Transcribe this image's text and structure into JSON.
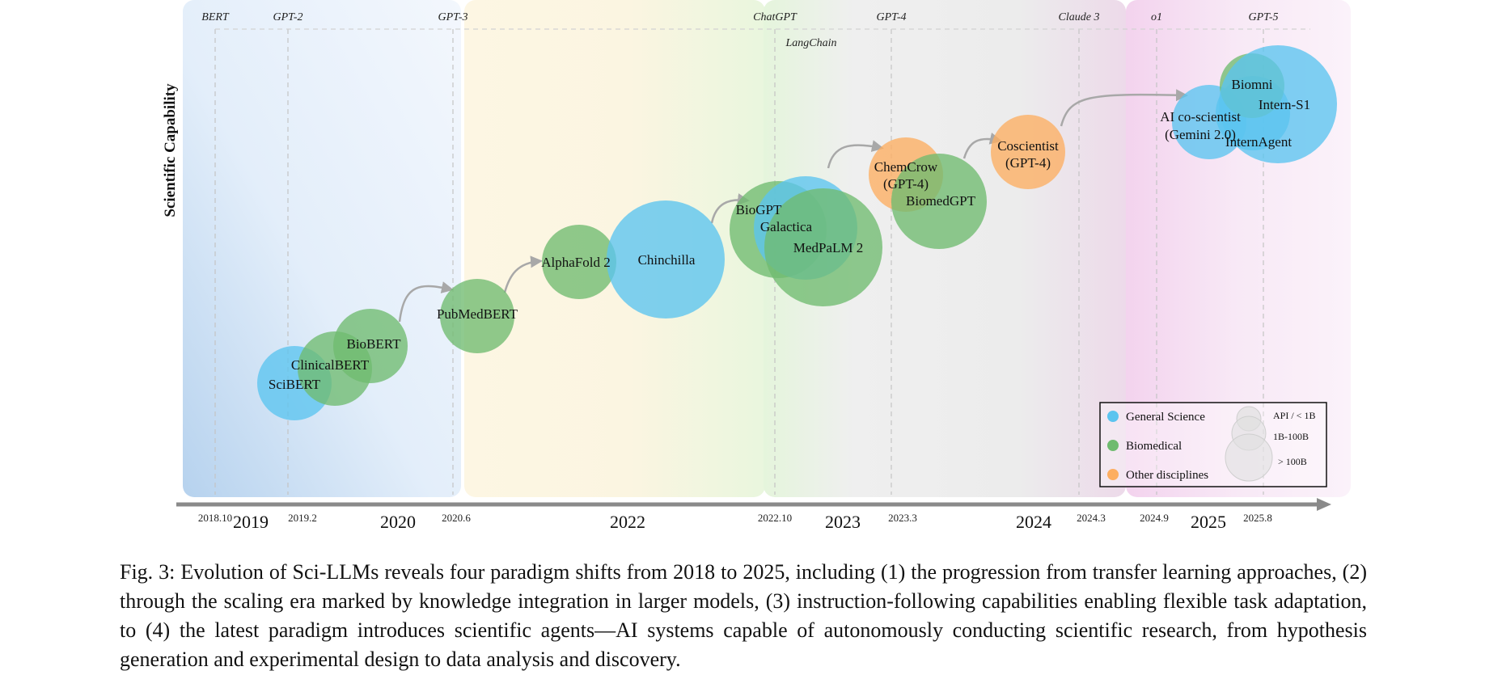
{
  "caption": "Fig. 3: Evolution of Sci-LLMs reveals four paradigm shifts from 2018 to 2025, including (1) the progression from transfer learning approaches, (2) through the scaling era marked by knowledge integration in larger models, (3) instruction-following capabilities enabling flexible task adaptation, to (4) the latest paradigm introduces scientific agents—AI systems capable of autonomously conducting scientific research, from hypothesis generation and experimental design to data analysis and discovery.",
  "chart_data": {
    "type": "scatter",
    "ylabel": "Scientific Capability",
    "colors": {
      "general": "#5bc4ef",
      "biomedical": "#6fbb6f",
      "other": "#fdae61",
      "axis": "#8a8a8a"
    },
    "milestones": [
      "BERT",
      "GPT-2",
      "GPT-3",
      "ChatGPT",
      "LangChain",
      "GPT-4",
      "Claude 3",
      "o1",
      "GPT-5"
    ],
    "date_ticks": [
      "2018.10",
      "2019.2",
      "2020.6",
      "2022.10",
      "2023.3",
      "2024.3",
      "2024.9",
      "2025.8"
    ],
    "years": [
      "2019",
      "2020",
      "2022",
      "2023",
      "2024",
      "2025"
    ],
    "models": [
      {
        "name": "SciBERT",
        "category": "general",
        "size": "1B-100B"
      },
      {
        "name": "ClinicalBERT",
        "category": "biomedical",
        "size": "1B-100B"
      },
      {
        "name": "BioBERT",
        "category": "biomedical",
        "size": "1B-100B"
      },
      {
        "name": "PubMedBERT",
        "category": "biomedical",
        "size": "1B-100B"
      },
      {
        "name": "AlphaFold 2",
        "category": "biomedical",
        "size": "1B-100B"
      },
      {
        "name": "Chinchilla",
        "category": "general",
        "size": "> 100B"
      },
      {
        "name": "BioGPT",
        "category": "biomedical",
        "size": "1B-100B"
      },
      {
        "name": "Galactica",
        "category": "general",
        "size": "> 100B"
      },
      {
        "name": "MedPaLM 2",
        "category": "biomedical",
        "size": "> 100B"
      },
      {
        "name": "ChemCrow (GPT-4)",
        "category": "other",
        "size": "1B-100B"
      },
      {
        "name": "BiomedGPT",
        "category": "biomedical",
        "size": "> 100B"
      },
      {
        "name": "Coscientist (GPT-4)",
        "category": "other",
        "size": "1B-100B"
      },
      {
        "name": "AI co-scientist (Gemini 2.0)",
        "category": "general",
        "size": "1B-100B"
      },
      {
        "name": "InternAgent",
        "category": "general",
        "size": "1B-100B"
      },
      {
        "name": "Biomni",
        "category": "biomedical",
        "size": "1B-100B"
      },
      {
        "name": "Intern-S1",
        "category": "general",
        "size": "> 100B"
      }
    ],
    "legend": {
      "categories": [
        {
          "key": "general",
          "label": "General Science"
        },
        {
          "key": "biomedical",
          "label": "Biomedical"
        },
        {
          "key": "other",
          "label": "Other disciplines"
        }
      ],
      "sizes": [
        "API / < 1B",
        "1B-100B",
        "> 100B"
      ]
    }
  }
}
